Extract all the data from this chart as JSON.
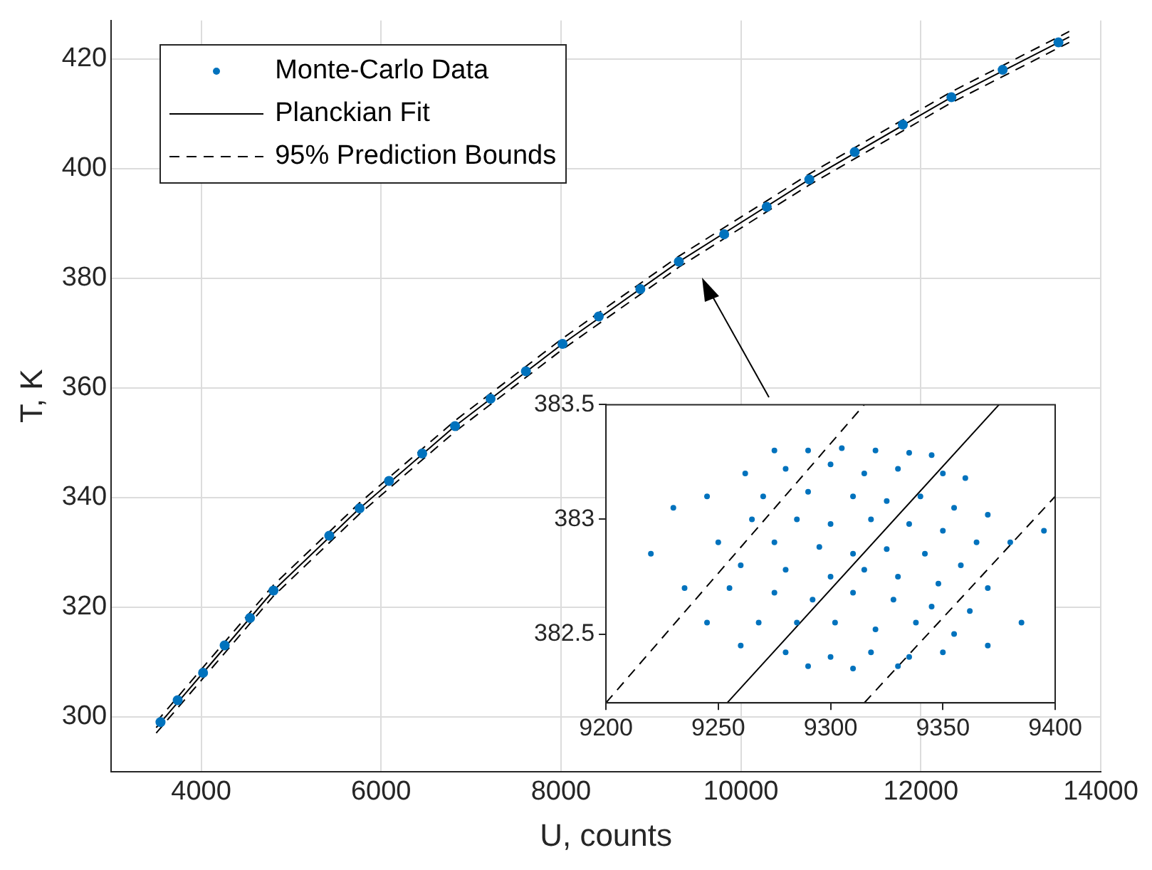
{
  "chart_data": [
    {
      "type": "scatter",
      "xlabel": "U, counts",
      "ylabel": "T, K",
      "xlim": [
        3000,
        14000
      ],
      "xticks": [
        4000,
        6000,
        8000,
        10000,
        12000,
        14000
      ],
      "ylim": [
        290,
        427
      ],
      "yticks": [
        300,
        320,
        340,
        360,
        380,
        400,
        420
      ],
      "grid": true,
      "legend": "top left",
      "series": [
        {
          "name": "Monte-Carlo Data",
          "type": "scatter",
          "marker": "circle",
          "color": "#0072bd",
          "x": [
            3548,
            3739,
            4021,
            4261,
            4543,
            4804,
            5424,
            5761,
            6088,
            6457,
            6822,
            7217,
            7610,
            8017,
            8420,
            8882,
            9310,
            9814,
            10287,
            10760,
            11265,
            11800,
            12340,
            12910,
            13530
          ],
          "values": [
            299,
            303,
            308,
            313,
            318,
            323,
            333,
            338,
            343,
            348,
            353,
            358,
            363,
            368,
            373,
            378,
            383,
            388,
            393,
            398,
            403,
            408,
            413,
            418,
            423
          ]
        },
        {
          "name": "Planckian Fit",
          "type": "line",
          "marker": "none",
          "line_style": "solid",
          "color": "#000000",
          "x": [
            3500,
            4021,
            4804,
            5761,
            6822,
            8017,
            9310,
            10760,
            12340,
            13650
          ],
          "values": [
            298,
            308,
            323,
            338,
            353,
            368,
            383,
            398,
            413,
            424
          ]
        },
        {
          "name": "95% Prediction Bounds",
          "type": "line",
          "marker": "none",
          "line_style": "dashed",
          "color": "#000000",
          "x": [
            3500,
            4021,
            4804,
            5761,
            6822,
            8017,
            9310,
            10760,
            12340,
            13650
          ],
          "values": [
            299,
            309,
            324,
            339,
            354,
            369,
            384,
            399,
            414,
            425
          ]
        },
        {
          "type": "line",
          "marker": "none",
          "line_style": "dashed",
          "color": "#000000",
          "x": [
            3500,
            4021,
            4804,
            5761,
            6822,
            8017,
            9310,
            10760,
            12340,
            13650
          ],
          "values": [
            297,
            307,
            322,
            337,
            352,
            367,
            382,
            397,
            412,
            423
          ]
        }
      ]
    },
    {
      "type": "scatter",
      "xlim": [
        9200,
        9400
      ],
      "xticks": [
        9200,
        9250,
        9300,
        9350,
        9400
      ],
      "ylim": [
        382.2,
        383.5
      ],
      "yticks": [
        382.5,
        383,
        383.5
      ],
      "grid": false,
      "legend": false,
      "series": [
        {
          "type": "scatter",
          "marker": "circle",
          "color": "#0072bd",
          "x": [
            9275,
            9290,
            9305,
            9320,
            9335,
            9345,
            9262,
            9280,
            9300,
            9315,
            9330,
            9350,
            9360,
            9245,
            9270,
            9290,
            9310,
            9325,
            9340,
            9355,
            9370,
            9230,
            9265,
            9285,
            9300,
            9318,
            9335,
            9350,
            9365,
            9220,
            9250,
            9275,
            9295,
            9310,
            9325,
            9342,
            9358,
            9380,
            9260,
            9280,
            9300,
            9315,
            9330,
            9348,
            9370,
            9395,
            9235,
            9255,
            9275,
            9292,
            9310,
            9328,
            9345,
            9362,
            9245,
            9268,
            9285,
            9302,
            9320,
            9338,
            9355,
            9385,
            9260,
            9280,
            9300,
            9318,
            9335,
            9350,
            9370,
            9290,
            9310,
            9330
          ],
          "values": [
            383.3,
            383.3,
            383.31,
            383.3,
            383.29,
            383.28,
            383.2,
            383.22,
            383.24,
            383.2,
            383.22,
            383.2,
            383.18,
            383.1,
            383.1,
            383.12,
            383.1,
            383.08,
            383.1,
            383.05,
            383.02,
            383.05,
            383.0,
            383.0,
            382.98,
            383.0,
            382.98,
            382.95,
            382.9,
            382.85,
            382.9,
            382.9,
            382.88,
            382.85,
            382.87,
            382.85,
            382.8,
            382.9,
            382.8,
            382.78,
            382.75,
            382.78,
            382.75,
            382.72,
            382.7,
            382.95,
            382.7,
            382.7,
            382.68,
            382.65,
            382.68,
            382.65,
            382.62,
            382.6,
            382.55,
            382.55,
            382.55,
            382.55,
            382.52,
            382.55,
            382.5,
            382.55,
            382.45,
            382.42,
            382.4,
            382.42,
            382.4,
            382.42,
            382.45,
            382.36,
            382.35,
            382.36
          ]
        },
        {
          "type": "line",
          "marker": "none",
          "line_style": "solid",
          "color": "#000000",
          "x": [
            9254,
            9375
          ],
          "values": [
            382.2,
            383.5
          ]
        },
        {
          "type": "line",
          "marker": "none",
          "line_style": "dashed",
          "color": "#000000",
          "x": [
            9200,
            9315
          ],
          "values": [
            382.2,
            383.5
          ]
        },
        {
          "type": "line",
          "marker": "none",
          "line_style": "dashed",
          "color": "#000000",
          "x": [
            9315,
            9400
          ],
          "values": [
            382.2,
            383.1
          ]
        }
      ]
    }
  ]
}
